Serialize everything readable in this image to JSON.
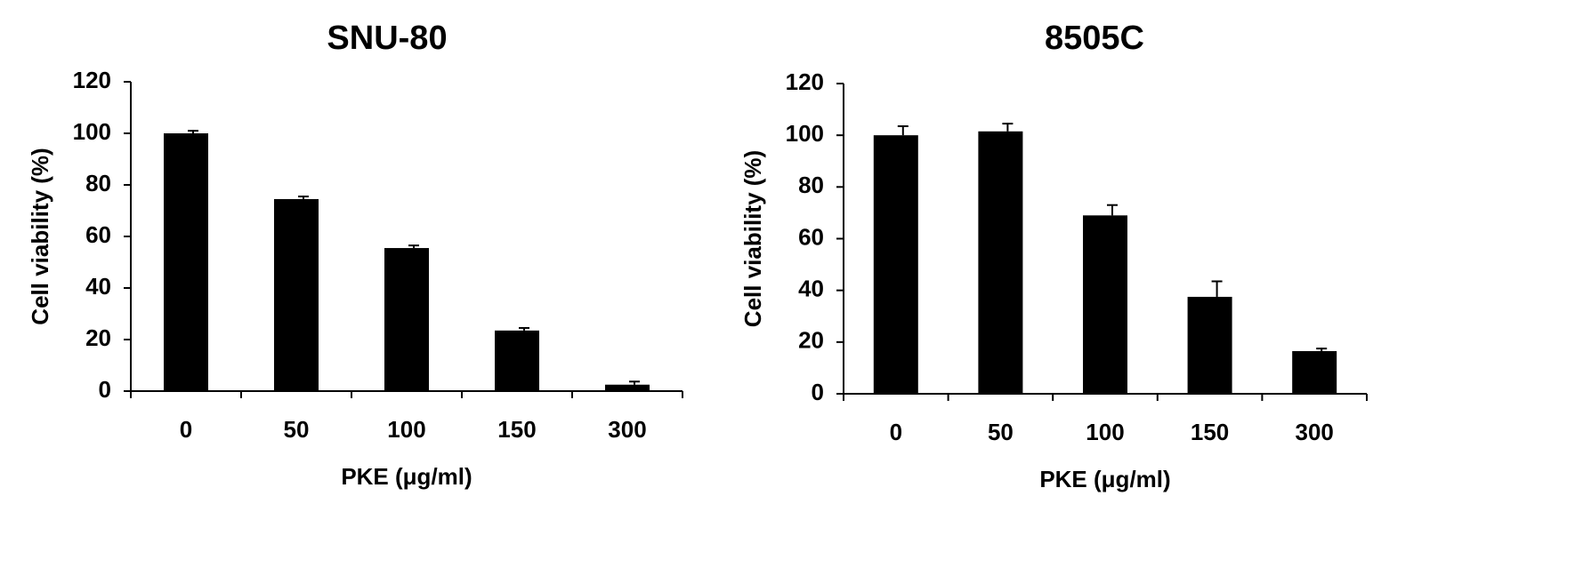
{
  "chart_data": [
    {
      "type": "bar",
      "title": "SNU-80",
      "x_label": "PKE (μg/ml)",
      "y_label": "Cell viability (%)",
      "categories": [
        "0",
        "50",
        "100",
        "150",
        "300"
      ],
      "values": [
        100,
        74.5,
        55.5,
        23.5,
        2.5
      ],
      "errors": [
        1,
        1,
        1,
        1,
        1.2
      ],
      "color": "#000000",
      "ylim": [
        0,
        120
      ],
      "yticks": [
        0,
        20,
        40,
        60,
        80,
        100,
        120
      ]
    },
    {
      "type": "bar",
      "title": "8505C",
      "x_label": "PKE (μg/ml)",
      "y_label": "Cell viability (%)",
      "categories": [
        "0",
        "50",
        "100",
        "150",
        "300"
      ],
      "values": [
        100,
        101.5,
        69,
        37.5,
        16.5
      ],
      "errors": [
        3.5,
        3,
        4,
        6,
        1
      ],
      "color": "#000000",
      "ylim": [
        0,
        120
      ],
      "yticks": [
        0,
        20,
        40,
        60,
        80,
        100,
        120
      ]
    }
  ]
}
